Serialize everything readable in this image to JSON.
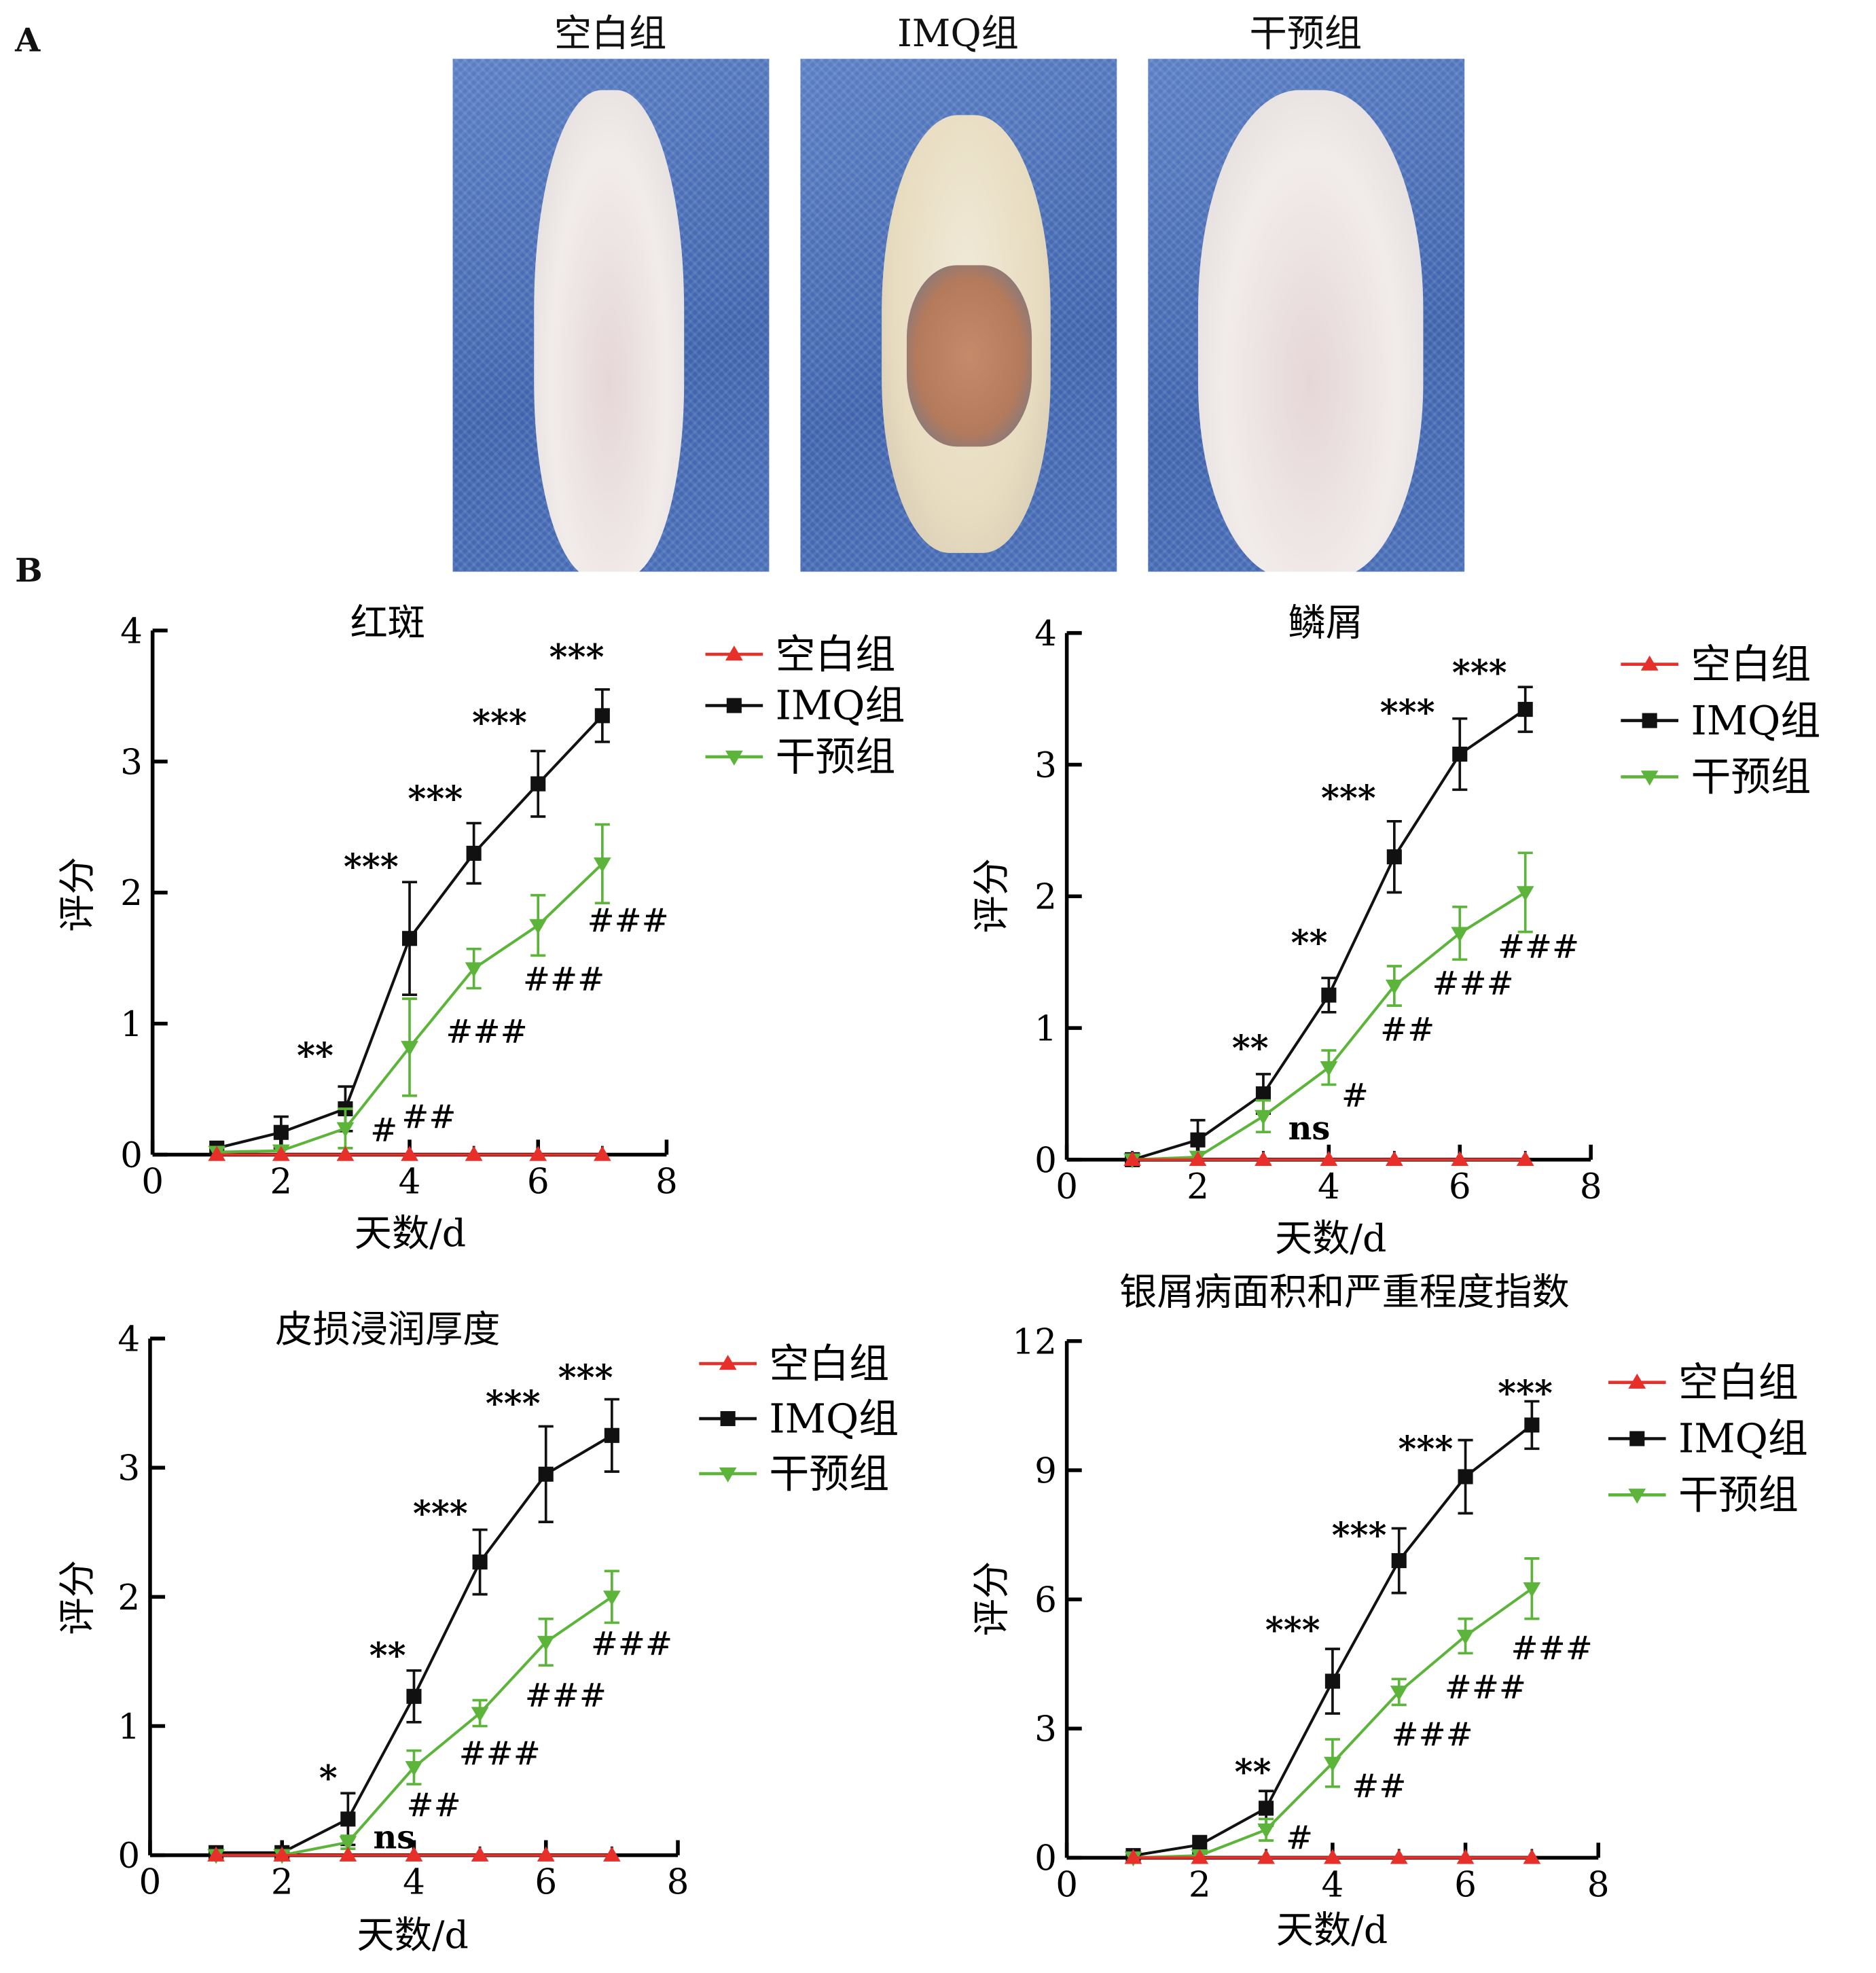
{
  "panels": {
    "a": "A",
    "b": "B"
  },
  "photos": [
    {
      "label": "空白组"
    },
    {
      "label": "IMQ组"
    },
    {
      "label": "干预组"
    }
  ],
  "colors": {
    "blank": "#e8302a",
    "imq": "#111111",
    "intervention": "#5cb53a"
  },
  "chart_data": [
    {
      "type": "line",
      "title": "红斑",
      "xlabel": "天数/d",
      "ylabel": "评分",
      "xlim": [
        0,
        8
      ],
      "ylim": [
        0,
        4
      ],
      "xticks": [
        0,
        2,
        4,
        6,
        8
      ],
      "yticks": [
        0,
        1,
        2,
        3,
        4
      ],
      "legend": "top-right",
      "x": [
        1,
        2,
        3,
        4,
        5,
        6,
        7
      ],
      "series": [
        {
          "name": "空白组",
          "values": [
            0,
            0,
            0,
            0,
            0,
            0,
            0
          ],
          "err": [
            0,
            0,
            0,
            0,
            0,
            0,
            0
          ]
        },
        {
          "name": "IMQ组",
          "values": [
            0.05,
            0.17,
            0.35,
            1.65,
            2.3,
            2.83,
            3.35
          ],
          "err": [
            0,
            0.12,
            0.17,
            0.43,
            0.23,
            0.25,
            0.2
          ]
        },
        {
          "name": "干预组",
          "values": [
            0.02,
            0.03,
            0.2,
            0.82,
            1.42,
            1.75,
            2.22
          ],
          "err": [
            0,
            0,
            0.15,
            0.37,
            0.15,
            0.23,
            0.3
          ]
        }
      ],
      "annotations": [
        {
          "text": "**",
          "x": 2.53,
          "y": 0.76
        },
        {
          "text": "***",
          "x": 3.4,
          "y": 2.2
        },
        {
          "text": "***",
          "x": 4.4,
          "y": 2.72
        },
        {
          "text": "***",
          "x": 5.4,
          "y": 3.3
        },
        {
          "text": "***",
          "x": 6.6,
          "y": 3.8
        },
        {
          "text": "#",
          "x": 3.6,
          "y": 0.2
        },
        {
          "text": "##",
          "x": 4.3,
          "y": 0.3
        },
        {
          "text": "###",
          "x": 5.2,
          "y": 0.95
        },
        {
          "text": "###",
          "x": 6.4,
          "y": 1.35
        },
        {
          "text": "###",
          "x": 7.4,
          "y": 1.8
        }
      ]
    },
    {
      "type": "line",
      "title": "鳞屑",
      "xlabel": "天数/d",
      "ylabel": "评分",
      "xlim": [
        0,
        8
      ],
      "ylim": [
        0,
        4
      ],
      "xticks": [
        0,
        2,
        4,
        6,
        8
      ],
      "yticks": [
        0,
        1,
        2,
        3,
        4
      ],
      "legend": "top-right",
      "x": [
        1,
        2,
        3,
        4,
        5,
        6,
        7
      ],
      "series": [
        {
          "name": "空白组",
          "values": [
            0,
            0,
            0,
            0,
            0,
            0,
            0
          ],
          "err": [
            0,
            0,
            0,
            0,
            0,
            0,
            0
          ]
        },
        {
          "name": "IMQ组",
          "values": [
            0,
            0.15,
            0.5,
            1.25,
            2.3,
            3.08,
            3.42
          ],
          "err": [
            0,
            0.15,
            0.15,
            0.13,
            0.27,
            0.27,
            0.17
          ]
        },
        {
          "name": "干预组",
          "values": [
            0,
            0.02,
            0.33,
            0.7,
            1.32,
            1.72,
            2.03
          ],
          "err": [
            0,
            0,
            0.12,
            0.13,
            0.15,
            0.2,
            0.3
          ]
        }
      ],
      "annotations": [
        {
          "text": "**",
          "x": 2.8,
          "y": 0.85
        },
        {
          "text": "**",
          "x": 3.7,
          "y": 1.65
        },
        {
          "text": "***",
          "x": 4.3,
          "y": 2.75
        },
        {
          "text": "***",
          "x": 5.2,
          "y": 3.4
        },
        {
          "text": "***",
          "x": 6.3,
          "y": 3.7
        },
        {
          "text": "ns",
          "x": 3.7,
          "y": 0.25
        },
        {
          "text": "#",
          "x": 4.4,
          "y": 0.5
        },
        {
          "text": "##",
          "x": 5.2,
          "y": 1.0
        },
        {
          "text": "###",
          "x": 6.2,
          "y": 1.35
        },
        {
          "text": "###",
          "x": 7.2,
          "y": 1.63
        }
      ]
    },
    {
      "type": "line",
      "title": "皮损浸润厚度",
      "xlabel": "天数/d",
      "ylabel": "评分",
      "xlim": [
        0,
        8
      ],
      "ylim": [
        0,
        4
      ],
      "xticks": [
        0,
        2,
        4,
        6,
        8
      ],
      "yticks": [
        0,
        1,
        2,
        3,
        4
      ],
      "legend": "top-right",
      "x": [
        1,
        2,
        3,
        4,
        5,
        6,
        7
      ],
      "series": [
        {
          "name": "空白组",
          "values": [
            0,
            0,
            0,
            0,
            0,
            0,
            0
          ],
          "err": [
            0,
            0,
            0,
            0,
            0,
            0,
            0
          ]
        },
        {
          "name": "IMQ组",
          "values": [
            0.02,
            0.02,
            0.28,
            1.23,
            2.27,
            2.95,
            3.25
          ],
          "err": [
            0,
            0,
            0.2,
            0.2,
            0.25,
            0.37,
            0.28
          ]
        },
        {
          "name": "干预组",
          "values": [
            0,
            0,
            0.1,
            0.68,
            1.1,
            1.65,
            2.0
          ],
          "err": [
            0,
            0,
            0.05,
            0.13,
            0.1,
            0.18,
            0.2
          ]
        }
      ],
      "annotations": [
        {
          "text": "*",
          "x": 2.7,
          "y": 0.6
        },
        {
          "text": "**",
          "x": 3.6,
          "y": 1.55
        },
        {
          "text": "***",
          "x": 4.4,
          "y": 2.65
        },
        {
          "text": "***",
          "x": 5.5,
          "y": 3.5
        },
        {
          "text": "***",
          "x": 6.6,
          "y": 3.7
        },
        {
          "text": "ns",
          "x": 3.7,
          "y": 0.15
        },
        {
          "text": "##",
          "x": 4.3,
          "y": 0.4
        },
        {
          "text": "###",
          "x": 5.3,
          "y": 0.8
        },
        {
          "text": "###",
          "x": 6.3,
          "y": 1.25
        },
        {
          "text": "###",
          "x": 7.3,
          "y": 1.65
        }
      ]
    },
    {
      "type": "line",
      "title": "银屑病面积和严重程度指数",
      "xlabel": "天数/d",
      "ylabel": "评分",
      "xlim": [
        0,
        8
      ],
      "ylim": [
        0,
        12
      ],
      "xticks": [
        0,
        2,
        4,
        6,
        8
      ],
      "yticks": [
        0,
        3,
        6,
        9,
        12
      ],
      "legend": "top-right",
      "x": [
        1,
        2,
        3,
        4,
        5,
        6,
        7
      ],
      "series": [
        {
          "name": "空白组",
          "values": [
            0,
            0,
            0,
            0,
            0,
            0,
            0
          ],
          "err": [
            0,
            0,
            0,
            0,
            0,
            0,
            0
          ]
        },
        {
          "name": "IMQ组",
          "values": [
            0.05,
            0.3,
            1.15,
            4.1,
            6.9,
            8.85,
            10.05
          ],
          "err": [
            0,
            0.2,
            0.4,
            0.75,
            0.75,
            0.85,
            0.55
          ]
        },
        {
          "name": "干预组",
          "values": [
            0,
            0.05,
            0.65,
            2.2,
            3.85,
            5.15,
            6.25
          ],
          "err": [
            0,
            0,
            0.25,
            0.55,
            0.3,
            0.4,
            0.7
          ]
        }
      ],
      "annotations": [
        {
          "text": "**",
          "x": 2.8,
          "y": 2.0
        },
        {
          "text": "***",
          "x": 3.4,
          "y": 5.3
        },
        {
          "text": "***",
          "x": 4.4,
          "y": 7.5
        },
        {
          "text": "***",
          "x": 5.4,
          "y": 9.5
        },
        {
          "text": "***",
          "x": 6.9,
          "y": 10.8
        },
        {
          "text": "#",
          "x": 3.5,
          "y": 0.5
        },
        {
          "text": "##",
          "x": 4.7,
          "y": 1.7
        },
        {
          "text": "###",
          "x": 5.5,
          "y": 2.9
        },
        {
          "text": "###",
          "x": 6.3,
          "y": 4.0
        },
        {
          "text": "###",
          "x": 7.3,
          "y": 4.9
        }
      ]
    }
  ]
}
